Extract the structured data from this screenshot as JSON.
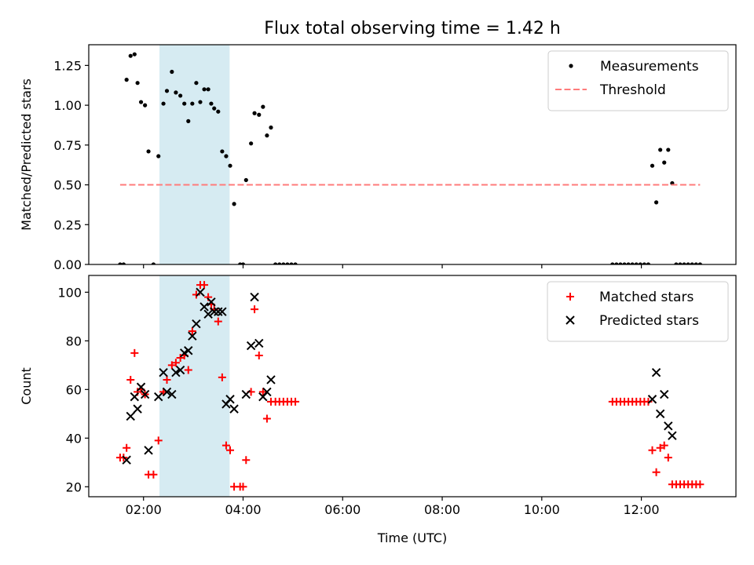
{
  "chart_data": [
    {
      "type": "scatter",
      "title": "Flux total observing time = 1.42 h",
      "xlabel": "",
      "ylabel": "Matched/Predicted stars",
      "xlim": [
        0.9,
        13.9
      ],
      "ylim": [
        0.0,
        1.38
      ],
      "xticks": [
        2,
        4,
        6,
        8,
        10,
        12
      ],
      "xticklabels": [
        "",
        "",
        "",
        "",
        "",
        ""
      ],
      "yticks": [
        0.0,
        0.25,
        0.5,
        0.75,
        1.0,
        1.25
      ],
      "yticklabels": [
        "0.00",
        "0.25",
        "0.50",
        "0.75",
        "1.00",
        "1.25"
      ],
      "shaded_span": {
        "x_start": 2.32,
        "x_end": 3.73,
        "color": "#add8e6"
      },
      "legend_position": "upper right",
      "series": [
        {
          "name": "Measurements",
          "kind": "scatter",
          "marker": "dot",
          "color": "#000000",
          "points": [
            [
              1.53,
              0.0
            ],
            [
              1.6,
              0.0
            ],
            [
              1.66,
              1.16
            ],
            [
              1.74,
              1.31
            ],
            [
              1.82,
              1.32
            ],
            [
              1.88,
              1.14
            ],
            [
              1.95,
              1.02
            ],
            [
              2.03,
              1.0
            ],
            [
              2.1,
              0.71
            ],
            [
              2.2,
              0.0
            ],
            [
              2.3,
              0.68
            ],
            [
              2.4,
              1.01
            ],
            [
              2.47,
              1.09
            ],
            [
              2.57,
              1.21
            ],
            [
              2.65,
              1.08
            ],
            [
              2.74,
              1.06
            ],
            [
              2.82,
              1.01
            ],
            [
              2.9,
              0.9
            ],
            [
              2.98,
              1.01
            ],
            [
              3.06,
              1.14
            ],
            [
              3.14,
              1.02
            ],
            [
              3.22,
              1.1
            ],
            [
              3.3,
              1.1
            ],
            [
              3.36,
              1.01
            ],
            [
              3.42,
              0.98
            ],
            [
              3.5,
              0.96
            ],
            [
              3.58,
              0.71
            ],
            [
              3.66,
              0.68
            ],
            [
              3.74,
              0.62
            ],
            [
              3.82,
              0.38
            ],
            [
              3.94,
              0.0
            ],
            [
              4.0,
              0.0
            ],
            [
              4.06,
              0.53
            ],
            [
              4.16,
              0.76
            ],
            [
              4.23,
              0.95
            ],
            [
              4.32,
              0.94
            ],
            [
              4.4,
              0.99
            ],
            [
              4.48,
              0.81
            ],
            [
              4.56,
              0.86
            ],
            [
              4.65,
              0.0
            ],
            [
              4.73,
              0.0
            ],
            [
              4.81,
              0.0
            ],
            [
              4.89,
              0.0
            ],
            [
              4.97,
              0.0
            ],
            [
              5.05,
              0.0
            ],
            [
              11.42,
              0.0
            ],
            [
              11.5,
              0.0
            ],
            [
              11.58,
              0.0
            ],
            [
              11.66,
              0.0
            ],
            [
              11.74,
              0.0
            ],
            [
              11.82,
              0.0
            ],
            [
              11.9,
              0.0
            ],
            [
              11.98,
              0.0
            ],
            [
              12.06,
              0.0
            ],
            [
              12.14,
              0.0
            ],
            [
              12.22,
              0.62
            ],
            [
              12.3,
              0.39
            ],
            [
              12.38,
              0.72
            ],
            [
              12.46,
              0.64
            ],
            [
              12.54,
              0.72
            ],
            [
              12.62,
              0.51
            ],
            [
              12.7,
              0.0
            ],
            [
              12.78,
              0.0
            ],
            [
              12.86,
              0.0
            ],
            [
              12.94,
              0.0
            ],
            [
              13.02,
              0.0
            ],
            [
              13.1,
              0.0
            ],
            [
              13.18,
              0.0
            ]
          ]
        },
        {
          "name": "Threshold",
          "kind": "line",
          "style": "dashed",
          "color": "#ff7b7b",
          "points": [
            [
              1.53,
              0.5
            ],
            [
              13.18,
              0.5
            ]
          ]
        }
      ]
    },
    {
      "type": "scatter",
      "title": "",
      "xlabel": "Time (UTC)",
      "ylabel": "Count",
      "xlim": [
        0.9,
        13.9
      ],
      "ylim": [
        15.9,
        106.9
      ],
      "xticks": [
        2,
        4,
        6,
        8,
        10,
        12
      ],
      "xticklabels": [
        "02:00",
        "04:00",
        "06:00",
        "08:00",
        "10:00",
        "12:00"
      ],
      "yticks": [
        20,
        40,
        60,
        80,
        100
      ],
      "yticklabels": [
        "20",
        "40",
        "60",
        "80",
        "100"
      ],
      "shaded_span": {
        "x_start": 2.32,
        "x_end": 3.73,
        "color": "#add8e6"
      },
      "legend_position": "upper right",
      "series": [
        {
          "name": "Matched stars",
          "kind": "scatter",
          "marker": "plus",
          "color": "#ff0000",
          "points": [
            [
              1.53,
              32
            ],
            [
              1.6,
              32
            ],
            [
              1.66,
              36
            ],
            [
              1.74,
              64
            ],
            [
              1.82,
              75
            ],
            [
              1.88,
              59
            ],
            [
              1.95,
              60
            ],
            [
              2.03,
              58
            ],
            [
              2.1,
              25
            ],
            [
              2.2,
              25
            ],
            [
              2.3,
              39
            ],
            [
              2.4,
              59
            ],
            [
              2.47,
              64
            ],
            [
              2.57,
              70
            ],
            [
              2.65,
              71
            ],
            [
              2.74,
              73
            ],
            [
              2.82,
              74
            ],
            [
              2.9,
              68
            ],
            [
              2.98,
              84
            ],
            [
              3.06,
              99
            ],
            [
              3.14,
              103
            ],
            [
              3.22,
              103
            ],
            [
              3.3,
              98
            ],
            [
              3.36,
              95
            ],
            [
              3.42,
              93
            ],
            [
              3.5,
              88
            ],
            [
              3.58,
              65
            ],
            [
              3.66,
              37
            ],
            [
              3.74,
              35
            ],
            [
              3.82,
              20
            ],
            [
              3.94,
              20
            ],
            [
              4.0,
              20
            ],
            [
              4.06,
              31
            ],
            [
              4.16,
              59
            ],
            [
              4.23,
              93
            ],
            [
              4.32,
              74
            ],
            [
              4.4,
              59
            ],
            [
              4.48,
              48
            ],
            [
              4.56,
              55
            ],
            [
              4.65,
              55
            ],
            [
              4.73,
              55
            ],
            [
              4.81,
              55
            ],
            [
              4.89,
              55
            ],
            [
              4.97,
              55
            ],
            [
              5.05,
              55
            ],
            [
              11.42,
              55
            ],
            [
              11.5,
              55
            ],
            [
              11.58,
              55
            ],
            [
              11.66,
              55
            ],
            [
              11.74,
              55
            ],
            [
              11.82,
              55
            ],
            [
              11.9,
              55
            ],
            [
              11.98,
              55
            ],
            [
              12.06,
              55
            ],
            [
              12.14,
              55
            ],
            [
              12.22,
              35
            ],
            [
              12.3,
              26
            ],
            [
              12.38,
              36
            ],
            [
              12.46,
              37
            ],
            [
              12.54,
              32
            ],
            [
              12.62,
              21
            ],
            [
              12.7,
              21
            ],
            [
              12.78,
              21
            ],
            [
              12.86,
              21
            ],
            [
              12.94,
              21
            ],
            [
              13.02,
              21
            ],
            [
              13.1,
              21
            ],
            [
              13.18,
              21
            ]
          ]
        },
        {
          "name": "Predicted stars",
          "kind": "scatter",
          "marker": "cross",
          "color": "#000000",
          "points": [
            [
              1.66,
              31
            ],
            [
              1.74,
              49
            ],
            [
              1.82,
              57
            ],
            [
              1.88,
              52
            ],
            [
              1.95,
              61
            ],
            [
              2.03,
              58
            ],
            [
              2.1,
              35
            ],
            [
              2.3,
              57
            ],
            [
              2.4,
              67
            ],
            [
              2.47,
              59
            ],
            [
              2.57,
              58
            ],
            [
              2.65,
              67
            ],
            [
              2.74,
              68
            ],
            [
              2.82,
              75
            ],
            [
              2.9,
              76
            ],
            [
              2.98,
              82
            ],
            [
              3.06,
              87
            ],
            [
              3.14,
              100
            ],
            [
              3.22,
              94
            ],
            [
              3.3,
              91
            ],
            [
              3.36,
              96
            ],
            [
              3.42,
              92
            ],
            [
              3.5,
              92
            ],
            [
              3.58,
              92
            ],
            [
              3.66,
              54
            ],
            [
              3.74,
              56
            ],
            [
              3.82,
              52
            ],
            [
              4.06,
              58
            ],
            [
              4.16,
              78
            ],
            [
              4.23,
              98
            ],
            [
              4.32,
              79
            ],
            [
              4.4,
              57
            ],
            [
              4.48,
              59
            ],
            [
              4.56,
              64
            ],
            [
              12.22,
              56
            ],
            [
              12.3,
              67
            ],
            [
              12.38,
              50
            ],
            [
              12.46,
              58
            ],
            [
              12.54,
              45
            ],
            [
              12.62,
              41
            ]
          ]
        }
      ]
    }
  ]
}
